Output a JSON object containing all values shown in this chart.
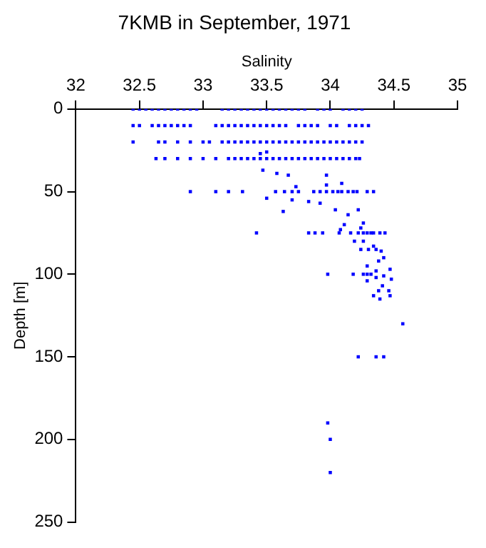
{
  "chart_data": {
    "type": "scatter",
    "title": "7KMB in September, 1971",
    "xlabel": "Salinity",
    "ylabel": "Depth [m]",
    "xlim": [
      32,
      35
    ],
    "xticks": [
      32,
      32.5,
      33,
      33.5,
      34,
      34.5,
      35
    ],
    "ylim": [
      250,
      0
    ],
    "yticks": [
      0,
      50,
      100,
      150,
      200,
      250
    ],
    "grid": false,
    "legend": false,
    "marker": "square",
    "series": [
      {
        "color": "#0000ff",
        "x": [
          32.45,
          32.5,
          32.55,
          32.6,
          32.65,
          32.7,
          32.75,
          32.8,
          32.85,
          32.9,
          32.95,
          33.15,
          33.2,
          33.25,
          33.3,
          33.35,
          33.4,
          33.45,
          33.5,
          33.55,
          33.6,
          33.65,
          33.7,
          33.75,
          33.8,
          33.9,
          33.95,
          34.0,
          34.1,
          34.15,
          34.2,
          34.25
        ],
        "values": [
          0,
          0,
          0,
          0,
          0,
          0,
          0,
          0,
          0,
          0,
          0,
          0,
          0,
          0,
          0,
          0,
          0,
          0,
          0,
          0,
          0,
          0,
          0,
          0,
          0,
          0,
          0,
          0,
          0,
          0,
          0,
          0
        ]
      },
      {
        "color": "#0000ff",
        "x": [
          32.45,
          32.5,
          32.6,
          32.65,
          32.7,
          32.75,
          32.8,
          32.85,
          32.9,
          33.1,
          33.15,
          33.2,
          33.25,
          33.3,
          33.35,
          33.4,
          33.45,
          33.5,
          33.55,
          33.6,
          33.65,
          33.75,
          33.8,
          33.85,
          33.9,
          34.0,
          34.05,
          34.15,
          34.2,
          34.25,
          34.3
        ],
        "values": [
          10,
          10,
          10,
          10,
          10,
          10,
          10,
          10,
          10,
          10,
          10,
          10,
          10,
          10,
          10,
          10,
          10,
          10,
          10,
          10,
          10,
          10,
          10,
          10,
          10,
          10,
          10,
          10,
          10,
          10,
          10
        ]
      },
      {
        "color": "#0000ff",
        "x": [
          32.45,
          32.65,
          32.7,
          32.8,
          32.9,
          33.0,
          33.05,
          33.15,
          33.2,
          33.25,
          33.3,
          33.35,
          33.4,
          33.45,
          33.5,
          33.55,
          33.6,
          33.65,
          33.7,
          33.75,
          33.8,
          33.85,
          33.9,
          33.95,
          34.0,
          34.05,
          34.1,
          34.15,
          34.2,
          34.25
        ],
        "values": [
          20,
          20,
          20,
          20,
          20,
          20,
          20,
          20,
          20,
          20,
          20,
          20,
          20,
          20,
          20,
          20,
          20,
          20,
          20,
          20,
          20,
          20,
          20,
          20,
          20,
          20,
          20,
          20,
          20,
          20
        ]
      },
      {
        "color": "#0000ff",
        "x": [
          32.63,
          32.7,
          32.8,
          32.9,
          33.0,
          33.1,
          33.2,
          33.25,
          33.3,
          33.35,
          33.4,
          33.45,
          33.5,
          33.55,
          33.6,
          33.65,
          33.7,
          33.75,
          33.8,
          33.85,
          33.9,
          33.95,
          34.0,
          34.05,
          34.1,
          34.15,
          34.2,
          34.23,
          33.45,
          33.5
        ],
        "values": [
          30,
          30,
          30,
          30,
          30,
          30,
          30,
          30,
          30,
          30,
          30,
          30,
          30,
          30,
          30,
          30,
          30,
          30,
          30,
          30,
          30,
          30,
          30,
          30,
          30,
          30,
          30,
          30,
          27,
          26
        ]
      },
      {
        "color": "#0000ff",
        "x": [
          33.47,
          33.58,
          33.67,
          33.97,
          33.97,
          34.09,
          33.73,
          32.9,
          33.1,
          33.2,
          33.31,
          33.57,
          33.64,
          33.7,
          33.75,
          33.87,
          33.92,
          33.97,
          34.02,
          34.06,
          34.09,
          34.14,
          34.18,
          34.21,
          34.29,
          34.34,
          33.5,
          33.7,
          33.83,
          33.92,
          33.63,
          34.04,
          34.22,
          34.14,
          34.26,
          34.24,
          34.11,
          34.08
        ],
        "values": [
          37,
          39,
          40,
          40,
          46,
          45,
          47,
          50,
          50,
          50,
          50,
          50,
          50,
          50,
          50,
          50,
          50,
          50,
          50,
          50,
          50,
          50,
          50,
          50,
          50,
          50,
          54,
          55,
          56,
          57,
          62,
          61,
          61,
          64,
          69,
          72,
          70,
          73
        ]
      },
      {
        "color": "#0000ff",
        "x": [
          33.42,
          33.83,
          33.88,
          33.94,
          34.07,
          34.16,
          34.22,
          34.26,
          34.29,
          34.32,
          34.34,
          34.39,
          34.43,
          34.19,
          34.26,
          34.34,
          34.36,
          34.4,
          34.24,
          34.3,
          34.42,
          34.38,
          34.29,
          34.36,
          34.47
        ],
        "values": [
          75,
          75,
          75,
          75,
          75,
          75,
          75,
          75,
          75,
          75,
          75,
          75,
          75,
          80,
          80,
          83,
          85,
          86,
          85,
          85,
          90,
          92,
          95,
          98,
          97
        ]
      },
      {
        "color": "#0000ff",
        "x": [
          33.98,
          34.18,
          34.26,
          34.29,
          34.32,
          34.42,
          34.36,
          34.48,
          34.29,
          34.41,
          34.38,
          34.46,
          34.34,
          34.39,
          34.47,
          34.57,
          34.22,
          34.36,
          34.42,
          33.98,
          34.0,
          34.0
        ],
        "values": [
          100,
          100,
          100,
          100,
          100,
          101,
          102,
          103,
          104,
          107,
          110,
          110,
          113,
          115,
          113,
          130,
          150,
          150,
          150,
          190,
          200,
          220
        ]
      }
    ]
  }
}
